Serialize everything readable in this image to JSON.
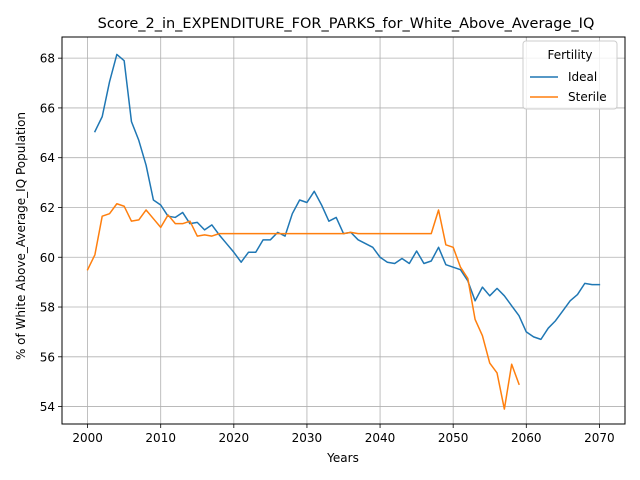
{
  "chart_data": {
    "type": "line",
    "title": "Score_2_in_EXPENDITURE_FOR_PARKS_for_White_Above_Average_IQ",
    "xlabel": "Years",
    "ylabel": "% of White Above_Average_IQ Population",
    "xlim": [
      1996.5,
      2073.5
    ],
    "ylim": [
      53.3,
      68.85
    ],
    "xticks": [
      2000,
      2010,
      2020,
      2030,
      2040,
      2050,
      2060,
      2070
    ],
    "yticks": [
      54,
      56,
      58,
      60,
      62,
      64,
      66,
      68
    ],
    "grid": true,
    "legend": {
      "title": "Fertility",
      "placement": "top-right"
    },
    "series": [
      {
        "name": "Ideal",
        "color": "#1f77b4",
        "x": [
          2001,
          2002,
          2003,
          2004,
          2005,
          2006,
          2007,
          2008,
          2009,
          2010,
          2011,
          2012,
          2013,
          2014,
          2015,
          2016,
          2017,
          2018,
          2019,
          2020,
          2021,
          2022,
          2023,
          2024,
          2025,
          2026,
          2027,
          2028,
          2029,
          2030,
          2031,
          2032,
          2033,
          2034,
          2035,
          2036,
          2037,
          2038,
          2039,
          2040,
          2041,
          2042,
          2043,
          2044,
          2045,
          2046,
          2047,
          2048,
          2049,
          2050,
          2051,
          2052,
          2053,
          2054,
          2055,
          2056,
          2057,
          2058,
          2059,
          2060,
          2061,
          2062,
          2063,
          2064,
          2065,
          2066,
          2067,
          2068,
          2069,
          2070
        ],
        "values": [
          65.05,
          65.65,
          67.05,
          68.15,
          67.9,
          65.45,
          64.7,
          63.7,
          62.3,
          62.1,
          61.65,
          61.6,
          61.8,
          61.35,
          61.4,
          61.1,
          61.3,
          60.9,
          60.55,
          60.2,
          59.8,
          60.2,
          60.2,
          60.7,
          60.7,
          61.0,
          60.85,
          61.75,
          62.3,
          62.2,
          62.65,
          62.1,
          61.45,
          61.6,
          60.95,
          61.0,
          60.7,
          60.55,
          60.4,
          60.0,
          59.8,
          59.75,
          59.95,
          59.75,
          60.25,
          59.75,
          59.85,
          60.4,
          59.7,
          59.6,
          59.5,
          59.05,
          58.25,
          58.8,
          58.45,
          58.75,
          58.45,
          58.05,
          57.65,
          57.0,
          56.8,
          56.7,
          57.15,
          57.45,
          57.85,
          58.25,
          58.5,
          58.95,
          58.9,
          58.9
        ]
      },
      {
        "name": "Sterile",
        "color": "#ff7f0e",
        "x": [
          2000,
          2001,
          2002,
          2003,
          2004,
          2005,
          2006,
          2007,
          2008,
          2009,
          2010,
          2011,
          2012,
          2013,
          2014,
          2015,
          2016,
          2017,
          2018,
          2019,
          2020,
          2021,
          2022,
          2023,
          2024,
          2025,
          2026,
          2027,
          2028,
          2029,
          2030,
          2031,
          2032,
          2033,
          2034,
          2035,
          2036,
          2037,
          2038,
          2039,
          2040,
          2041,
          2042,
          2043,
          2044,
          2045,
          2046,
          2047,
          2048,
          2049,
          2050,
          2051,
          2052,
          2053,
          2054,
          2055,
          2056,
          2057,
          2058,
          2059
        ],
        "values": [
          59.5,
          60.1,
          61.65,
          61.75,
          62.15,
          62.05,
          61.45,
          61.5,
          61.9,
          61.55,
          61.2,
          61.7,
          61.35,
          61.35,
          61.45,
          60.85,
          60.9,
          60.85,
          60.95,
          60.95,
          60.95,
          60.95,
          60.95,
          60.95,
          60.95,
          60.95,
          60.95,
          60.95,
          60.95,
          60.95,
          60.95,
          60.95,
          60.95,
          60.95,
          60.95,
          60.95,
          61.0,
          60.95,
          60.95,
          60.95,
          60.95,
          60.95,
          60.95,
          60.95,
          60.95,
          60.95,
          60.95,
          60.95,
          61.9,
          60.5,
          60.4,
          59.6,
          59.15,
          57.5,
          56.85,
          55.75,
          55.35,
          53.9,
          55.7,
          54.9
        ]
      }
    ]
  }
}
